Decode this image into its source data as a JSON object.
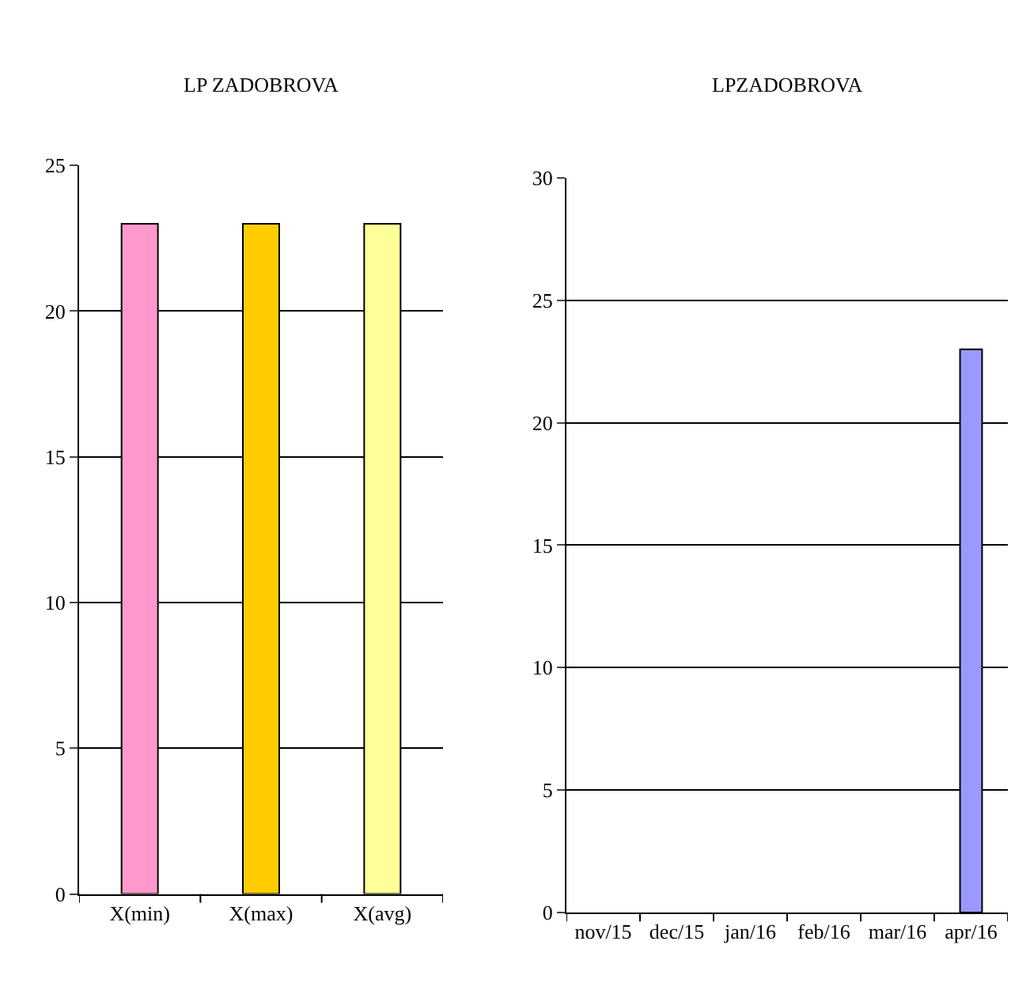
{
  "chart_data": [
    {
      "type": "bar",
      "title": "LP ZADOBROVA",
      "categories": [
        "X(min)",
        "X(max)",
        "X(avg)"
      ],
      "values": [
        23,
        23,
        23
      ],
      "colors": [
        "#ff99cc",
        "#ffcc00",
        "#ffff99"
      ],
      "ylim": [
        0,
        25
      ],
      "yticks": [
        0,
        5,
        10,
        15,
        20,
        25
      ],
      "grid": "y"
    },
    {
      "type": "bar",
      "title": "LPZADOBROVA",
      "categories": [
        "nov/15",
        "dec/15",
        "jan/16",
        "feb/16",
        "mar/16",
        "apr/16"
      ],
      "values": [
        null,
        null,
        null,
        null,
        null,
        23
      ],
      "color": "#9999ff",
      "ylim": [
        0,
        30
      ],
      "yticks": [
        0,
        5,
        10,
        15,
        20,
        25,
        30
      ],
      "grid": "y"
    }
  ]
}
